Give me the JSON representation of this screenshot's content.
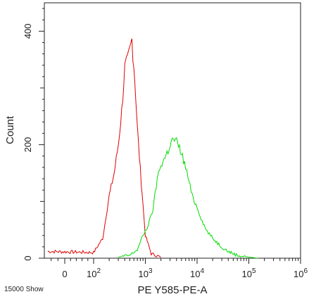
{
  "chart_data": {
    "type": "line",
    "title": "",
    "xlabel": "PE Y585-PE-A",
    "ylabel": "Count",
    "footer_text": "15000 Show",
    "x_scale": "biexponential",
    "xlim": [
      -30,
      1000000
    ],
    "ylim": [
      0,
      450
    ],
    "x_tick_labels": [
      {
        "value": 0,
        "base": "0",
        "exp": ""
      },
      {
        "value": 100,
        "base": "10",
        "exp": "2"
      },
      {
        "value": 1000,
        "base": "10",
        "exp": "3"
      },
      {
        "value": 10000,
        "base": "10",
        "exp": "4"
      },
      {
        "value": 100000,
        "base": "10",
        "exp": "5"
      },
      {
        "value": 1000000,
        "base": "10",
        "exp": "6"
      }
    ],
    "y_ticks": [
      0,
      200,
      400
    ],
    "grid": false,
    "legend": "none",
    "series": [
      {
        "color": "#e00000",
        "x": [
          -25,
          100,
          150,
          200,
          250,
          300,
          350,
          400,
          450,
          500,
          550,
          600,
          650,
          700,
          800,
          900,
          1000,
          1300,
          2000
        ],
        "values": [
          12,
          10,
          35,
          110,
          150,
          200,
          260,
          335,
          345,
          365,
          385,
          340,
          290,
          230,
          155,
          95,
          40,
          8,
          2
        ]
      },
      {
        "color": "#00dd00",
        "x": [
          300,
          500,
          700,
          900,
          1100,
          1400,
          1700,
          2000,
          2500,
          3000,
          3500,
          4000,
          5000,
          6000,
          7000,
          8000,
          10000,
          12000,
          15000,
          20000,
          30000,
          40000,
          60000,
          100000,
          150000
        ],
        "values": [
          2,
          5,
          15,
          40,
          55,
          85,
          140,
          165,
          180,
          200,
          210,
          205,
          185,
          160,
          135,
          110,
          90,
          70,
          50,
          35,
          20,
          12,
          5,
          2,
          0
        ]
      }
    ]
  }
}
